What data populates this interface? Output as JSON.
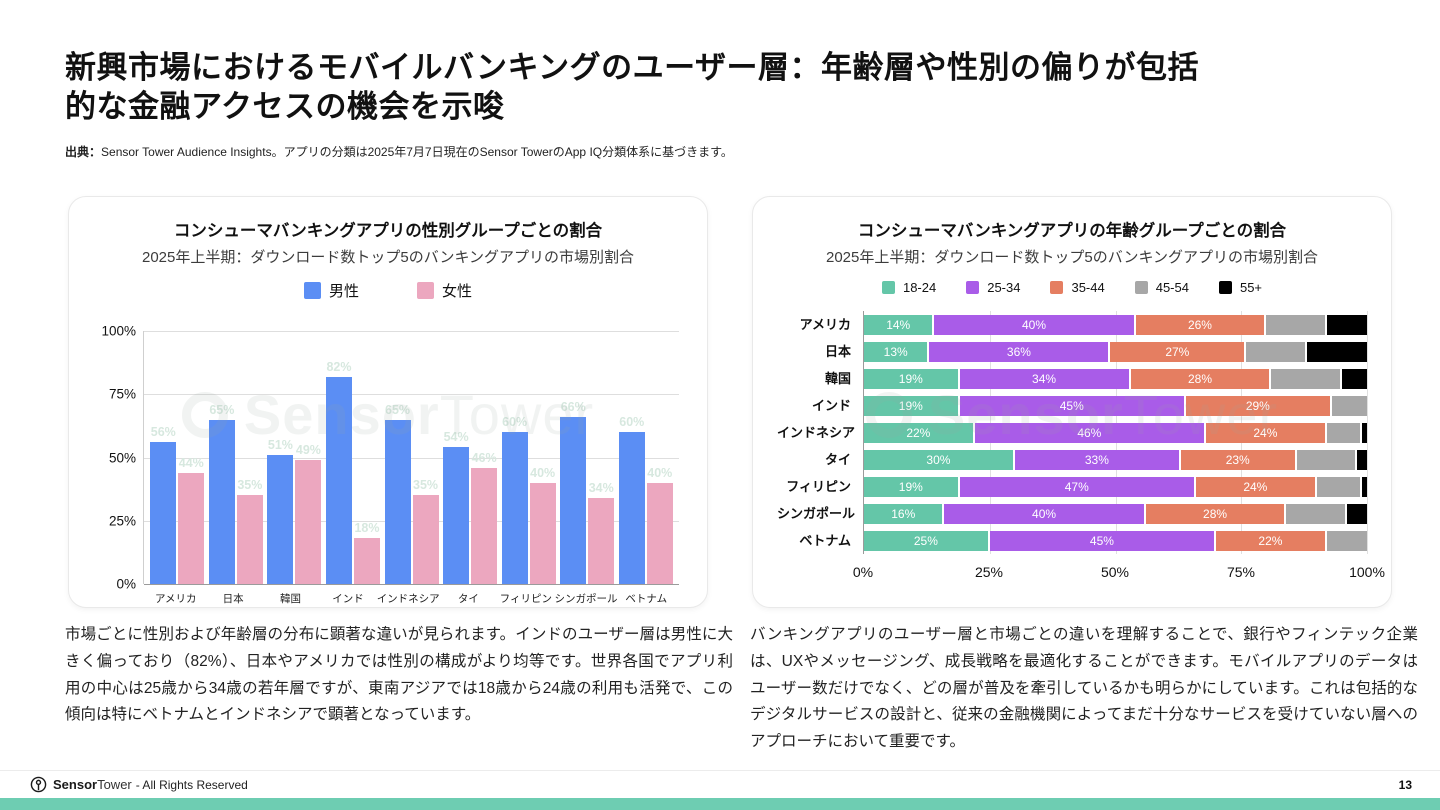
{
  "header": {
    "title": "新興市場におけるモバイルバンキングのユーザー層：年齢層や性別の偏りが包括\n的な金融アクセスの機会を示唆",
    "source_label": "出典：",
    "source_text": "Sensor Tower Audience Insights。アプリの分類は2025年7月7日現在のSensor TowerのApp IQ分類体系に基づきます。"
  },
  "watermark": {
    "bold": "Sensor",
    "light": "Tower"
  },
  "chart_data": [
    {
      "type": "bar",
      "title": "コンシューマバンキングアプリの性別グループごとの割合",
      "subtitle": "2025年上半期：ダウンロード数トップ5のバンキングアプリの市場別割合",
      "categories": [
        "アメリカ",
        "日本",
        "韓国",
        "インド",
        "インドネシア",
        "タイ",
        "フィリピン",
        "シンガポール",
        "ベトナム"
      ],
      "series": [
        {
          "name": "男性",
          "color": "#5b8ef4",
          "values": [
            56,
            65,
            51,
            82,
            65,
            54,
            60,
            66,
            60
          ]
        },
        {
          "name": "女性",
          "color": "#eca7bf",
          "values": [
            44,
            35,
            49,
            18,
            35,
            46,
            40,
            34,
            40
          ]
        }
      ],
      "unit": "%",
      "ylim": [
        0,
        100
      ],
      "yticks": [
        "100%",
        "75%",
        "50%",
        "25%",
        "0%"
      ],
      "grid": true,
      "legend_position": "top"
    },
    {
      "type": "stacked-bar-horizontal",
      "title": "コンシューマバンキングアプリの年齢グループごとの割合",
      "subtitle": "2025年上半期：ダウンロード数トップ5のバンキングアプリの市場別割合",
      "categories": [
        "アメリカ",
        "日本",
        "韓国",
        "インド",
        "インドネシア",
        "タイ",
        "フィリピン",
        "シンガポール",
        "ベトナム"
      ],
      "series": [
        {
          "name": "18-24",
          "color": "#64c6a8",
          "labeled": true,
          "values": [
            14,
            13,
            19,
            19,
            22,
            30,
            19,
            16,
            25
          ]
        },
        {
          "name": "25-34",
          "color": "#a95ce8",
          "labeled": true,
          "values": [
            40,
            36,
            34,
            45,
            46,
            33,
            47,
            40,
            45
          ]
        },
        {
          "name": "35-44",
          "color": "#e57e61",
          "labeled": true,
          "values": [
            26,
            27,
            28,
            29,
            24,
            23,
            24,
            28,
            22
          ]
        },
        {
          "name": "45-54",
          "color": "#a7a7a7",
          "labeled": false,
          "values": [
            12,
            12,
            14,
            7,
            7,
            12,
            9,
            12,
            8
          ]
        },
        {
          "name": "55+",
          "color": "#000000",
          "labeled": false,
          "values": [
            8,
            12,
            5,
            0,
            1,
            2,
            1,
            4,
            0
          ]
        }
      ],
      "unit": "%",
      "xlim": [
        0,
        100
      ],
      "xticks": [
        "0%",
        "25%",
        "50%",
        "75%",
        "100%"
      ],
      "grid": true,
      "legend_position": "top"
    }
  ],
  "notes": {
    "left": "市場ごとに性別および年齢層の分布に顕著な違いが見られます。インドのユーザー層は男性に大きく偏っており（82%）、日本やアメリカでは性別の構成がより均等です。世界各国でアプリ利用の中心は25歳から34歳の若年層ですが、東南アジアでは18歳から24歳の利用も活発で、この傾向は特にベトナムとインドネシアで顕著となっています。",
    "right": "バンキングアプリのユーザー層と市場ごとの違いを理解することで、銀行やフィンテック企業は、UXやメッセージング、成長戦略を最適化することができます。モバイルアプリのデータはユーザー数だけでなく、どの層が普及を牽引しているかも明らかにしています。これは包括的なデジタルサービスの設計と、従来の金融機関によってまだ十分なサービスを受けていない層へのアプローチにおいて重要です。"
  },
  "footer": {
    "brand_bold": "Sensor",
    "brand_light": "Tower",
    "rights": "- All Rights Reserved",
    "page_number": "13",
    "accent_color": "#6ecdb2"
  }
}
